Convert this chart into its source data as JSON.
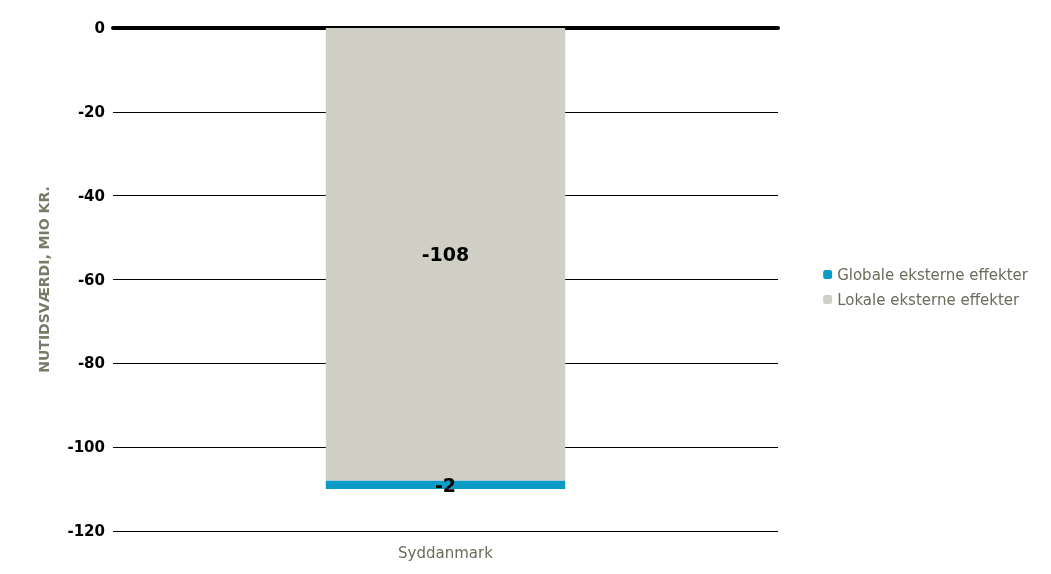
{
  "chart_data": {
    "type": "bar",
    "ylabel": "NUTIDSVÆRDI, MIO KR.",
    "categories": [
      "Syddanmark"
    ],
    "stacked": true,
    "series": [
      {
        "name": "Lokale eksterne effekter",
        "color": "#d0cfc6",
        "values": [
          -108
        ]
      },
      {
        "name": "Globale eksterne effekter",
        "color": "#0a9bc6",
        "values": [
          -2
        ]
      }
    ],
    "ylim": [
      -120,
      0
    ],
    "yticks": [
      0,
      -20,
      -40,
      -60,
      -80,
      -100,
      -120
    ],
    "grid": "y",
    "legend": "right",
    "data_labels": true
  }
}
